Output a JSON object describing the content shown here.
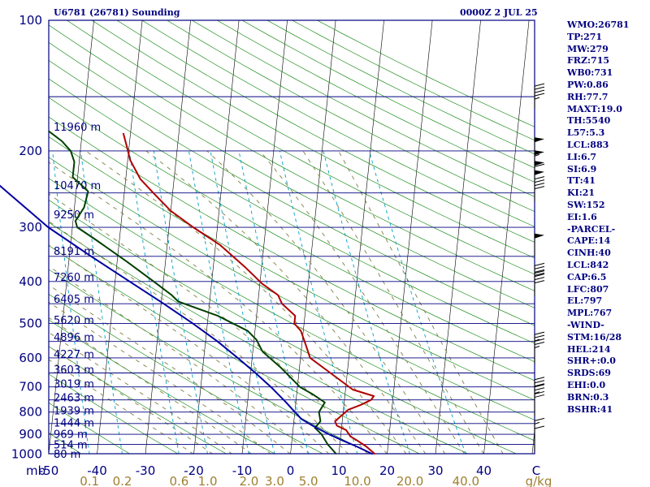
{
  "header": {
    "station": "U6781 (26781) Sounding",
    "time": "0000Z  2 JUL 25"
  },
  "indices": [
    "WMO:26781",
    "TP:271",
    "MW:279",
    "FRZ:715",
    "WB0:731",
    "PW:0.86",
    "RH:77.7",
    "MAXT:19.0",
    "TH:5540",
    "L57:5.3",
    "LCL:883",
    "LI:6.7",
    "SI:6.9",
    "TT:41",
    "KI:21",
    "SW:152",
    "EI:1.6",
    "-PARCEL-",
    "CAPE:14",
    "CINH:40",
    "LCL:842",
    "CAP:6.5",
    "LFC:807",
    "EL:797",
    "MPL:767",
    "-WIND-",
    "STM:16/28",
    "HEL:214",
    "SHR+:0.0",
    "SRDS:69",
    "EHI:0.0",
    "BRN:0.3",
    "BSHR:41"
  ],
  "colors": {
    "text": "#000080",
    "isobar": "#000080",
    "isotherm": "#000000",
    "dry_adiabat": "#008000",
    "moist_adiabat": "#808040",
    "mixing_ratio": "#00a0c8",
    "temperature": "#b00000",
    "dewpoint": "#004000",
    "parcel": "#0000a0",
    "wind_barb": "#000000"
  },
  "chart_data": {
    "type": "skew-t",
    "title": "U6781 (26781) Sounding",
    "valid_time": "0000Z  2 JUL 25",
    "x_axis": {
      "label": "C",
      "min": -50,
      "max": 50,
      "ticks": [
        "-50",
        "-40",
        "-30",
        "-20",
        "-10",
        "0",
        "10",
        "20",
        "30",
        "40"
      ]
    },
    "pressure_axis": {
      "label": "mb",
      "scale": "log",
      "min": 100,
      "max": 1000,
      "ticks": [
        "100",
        "200",
        "300",
        "400",
        "500",
        "600",
        "700",
        "800",
        "900",
        "1000"
      ]
    },
    "mixing_ratio_axis": {
      "label": "g/kg",
      "ticks": [
        "0.1",
        "0.2",
        "0.6",
        "1.0",
        "2.0",
        "3.0",
        "5.0",
        "10.0",
        "20.0",
        "40.0"
      ]
    },
    "height_labels": [
      {
        "p": 176,
        "label": "11960 m"
      },
      {
        "p": 240,
        "label": "10470 m"
      },
      {
        "p": 280,
        "label": "9250 m"
      },
      {
        "p": 340,
        "label": "8191 m"
      },
      {
        "p": 390,
        "label": "7260 m"
      },
      {
        "p": 438,
        "label": "6405 m"
      },
      {
        "p": 490,
        "label": "5620 m"
      },
      {
        "p": 537,
        "label": "4896 m"
      },
      {
        "p": 587,
        "label": "4227 m"
      },
      {
        "p": 638,
        "label": "3603 m"
      },
      {
        "p": 688,
        "label": "3019 m"
      },
      {
        "p": 740,
        "label": "2463 m"
      },
      {
        "p": 793,
        "label": "1939 m"
      },
      {
        "p": 845,
        "label": "1444 m"
      },
      {
        "p": 897,
        "label": "969 m"
      },
      {
        "p": 950,
        "label": "514 m"
      },
      {
        "p": 998,
        "label": "80 m"
      }
    ],
    "series": [
      {
        "name": "",
        "kind": "temperature",
        "points": [
          {
            "p": 1000,
            "t": 17.5
          },
          {
            "p": 960,
            "t": 15.5
          },
          {
            "p": 930,
            "t": 13.5
          },
          {
            "p": 910,
            "t": 12.0
          },
          {
            "p": 880,
            "t": 11.0
          },
          {
            "p": 860,
            "t": 9.0
          },
          {
            "p": 840,
            "t": 8.5
          },
          {
            "p": 790,
            "t": 11.0
          },
          {
            "p": 770,
            "t": 13.5
          },
          {
            "p": 750,
            "t": 15.5
          },
          {
            "p": 735,
            "t": 16.0
          },
          {
            "p": 710,
            "t": 11.5
          },
          {
            "p": 650,
            "t": 6.5
          },
          {
            "p": 600,
            "t": 2.0
          },
          {
            "p": 550,
            "t": 0.5
          },
          {
            "p": 520,
            "t": -0.5
          },
          {
            "p": 500,
            "t": -2.0
          },
          {
            "p": 480,
            "t": -2.0
          },
          {
            "p": 450,
            "t": -5.0
          },
          {
            "p": 430,
            "t": -6.0
          },
          {
            "p": 405,
            "t": -9.5
          },
          {
            "p": 370,
            "t": -13.5
          },
          {
            "p": 330,
            "t": -19.0
          },
          {
            "p": 300,
            "t": -25.0
          },
          {
            "p": 275,
            "t": -30.0
          },
          {
            "p": 250,
            "t": -34.0
          },
          {
            "p": 232,
            "t": -37.0
          },
          {
            "p": 210,
            "t": -39.5
          },
          {
            "p": 195,
            "t": -40.5
          },
          {
            "p": 182,
            "t": -41.5
          }
        ]
      },
      {
        "name": "",
        "kind": "dewpoint",
        "points": [
          {
            "p": 1000,
            "t": 9.5
          },
          {
            "p": 950,
            "t": 7.5
          },
          {
            "p": 900,
            "t": 6.0
          },
          {
            "p": 870,
            "t": 4.5
          },
          {
            "p": 840,
            "t": 5.5
          },
          {
            "p": 800,
            "t": 5.0
          },
          {
            "p": 760,
            "t": 6.0
          },
          {
            "p": 730,
            "t": 3.5
          },
          {
            "p": 700,
            "t": 0.5
          },
          {
            "p": 660,
            "t": -2.0
          },
          {
            "p": 630,
            "t": -4.0
          },
          {
            "p": 580,
            "t": -8.0
          },
          {
            "p": 545,
            "t": -9.5
          },
          {
            "p": 520,
            "t": -11.5
          },
          {
            "p": 480,
            "t": -18.0
          },
          {
            "p": 445,
            "t": -26.5
          },
          {
            "p": 430,
            "t": -28.0
          },
          {
            "p": 400,
            "t": -32.0
          },
          {
            "p": 360,
            "t": -38.0
          },
          {
            "p": 320,
            "t": -45.0
          },
          {
            "p": 300,
            "t": -49.0
          },
          {
            "p": 290,
            "t": -49.5
          },
          {
            "p": 270,
            "t": -48.0
          },
          {
            "p": 248,
            "t": -47.5
          },
          {
            "p": 240,
            "t": -49.0
          },
          {
            "p": 230,
            "t": -51.0
          },
          {
            "p": 212,
            "t": -51.0
          },
          {
            "p": 200,
            "t": -52.0
          },
          {
            "p": 190,
            "t": -54.0
          },
          {
            "p": 180,
            "t": -57.0
          }
        ]
      },
      {
        "name": "",
        "kind": "parcel",
        "points": [
          {
            "p": 1000,
            "t": 17.0
          },
          {
            "p": 960,
            "t": 13.5
          },
          {
            "p": 930,
            "t": 10.5
          },
          {
            "p": 900,
            "t": 7.5
          },
          {
            "p": 860,
            "t": 4.0
          },
          {
            "p": 830,
            "t": 1.5
          },
          {
            "p": 800,
            "t": 0.0
          },
          {
            "p": 760,
            "t": -2.0
          },
          {
            "p": 700,
            "t": -5.5
          },
          {
            "p": 650,
            "t": -9.0
          },
          {
            "p": 600,
            "t": -13.0
          },
          {
            "p": 550,
            "t": -17.5
          },
          {
            "p": 500,
            "t": -23.0
          },
          {
            "p": 450,
            "t": -29.5
          },
          {
            "p": 400,
            "t": -37.0
          },
          {
            "p": 350,
            "t": -45.5
          },
          {
            "p": 300,
            "t": -55.0
          },
          {
            "p": 250,
            "t": -64.0
          },
          {
            "p": 200,
            "t": -75.0
          },
          {
            "p": 150,
            "t": -86.0
          },
          {
            "p": 120,
            "t": -93.0
          },
          {
            "p": 104,
            "t": -96.5
          }
        ]
      }
    ],
    "wind_barbs": [
      {
        "p": 160,
        "speed_kt": 45
      },
      {
        "p": 210,
        "speed_kt": 50
      },
      {
        "p": 225,
        "speed_kt": 55
      },
      {
        "p": 238,
        "speed_kt": 60
      },
      {
        "p": 250,
        "speed_kt": 50
      },
      {
        "p": 262,
        "speed_kt": 40
      },
      {
        "p": 350,
        "speed_kt": 50
      },
      {
        "p": 415,
        "speed_kt": 40
      },
      {
        "p": 432,
        "speed_kt": 40
      },
      {
        "p": 598,
        "speed_kt": 25
      },
      {
        "p": 620,
        "speed_kt": 25
      },
      {
        "p": 760,
        "speed_kt": 30
      },
      {
        "p": 790,
        "speed_kt": 25
      },
      {
        "p": 820,
        "speed_kt": 20
      },
      {
        "p": 945,
        "speed_kt": 15
      },
      {
        "p": 985,
        "speed_kt": 10
      }
    ]
  }
}
